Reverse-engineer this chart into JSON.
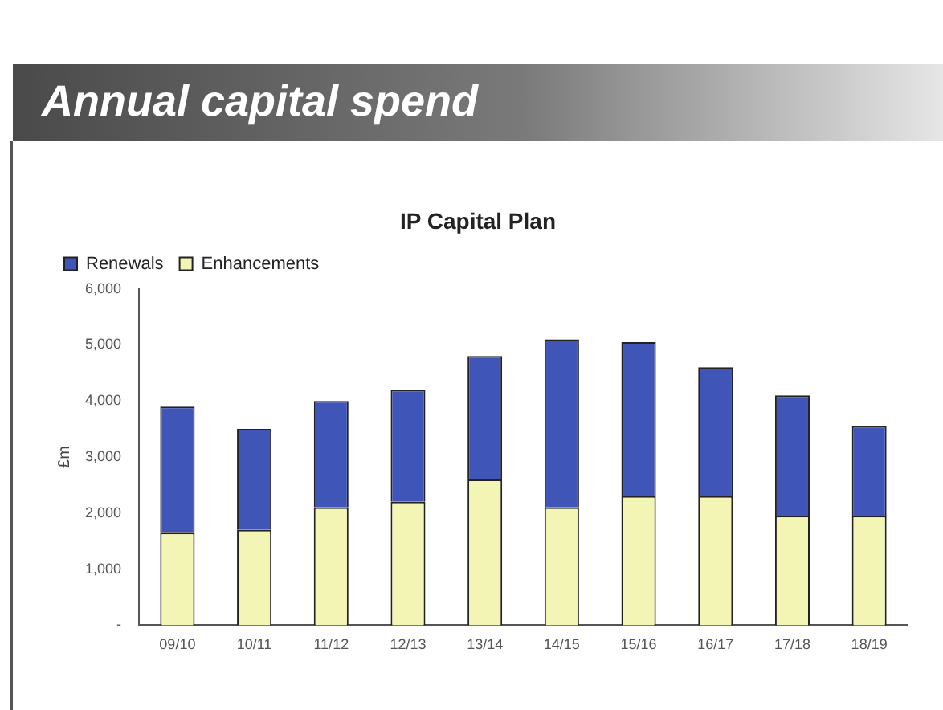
{
  "chart_data": {
    "type": "bar",
    "title": "Annual capital spend",
    "subtitle": "IP Capital Plan",
    "ylabel": "£m",
    "categories": [
      "09/10",
      "10/11",
      "11/12",
      "12/13",
      "13/14",
      "14/15",
      "15/16",
      "16/17",
      "17/18",
      "18/19"
    ],
    "stacked": true,
    "series": [
      {
        "name": "Enhancements",
        "color": "#f2f5b4",
        "values": [
          1650,
          1700,
          2100,
          2200,
          2600,
          2100,
          2300,
          2300,
          1950,
          1950
        ]
      },
      {
        "name": "Renewals",
        "color": "#3f56b8",
        "values": [
          2250,
          1800,
          1900,
          2000,
          2200,
          3000,
          2750,
          2300,
          2150,
          1600
        ]
      }
    ],
    "ylim": [
      0,
      6000
    ],
    "yticks": [
      {
        "value": 0,
        "label": "-"
      },
      {
        "value": 1000,
        "label": "1,000"
      },
      {
        "value": 2000,
        "label": "2,000"
      },
      {
        "value": 3000,
        "label": "3,000"
      },
      {
        "value": 4000,
        "label": "4,000"
      },
      {
        "value": 5000,
        "label": "5,000"
      },
      {
        "value": 6000,
        "label": "6,000"
      }
    ],
    "grid": false,
    "legend": "top left"
  }
}
